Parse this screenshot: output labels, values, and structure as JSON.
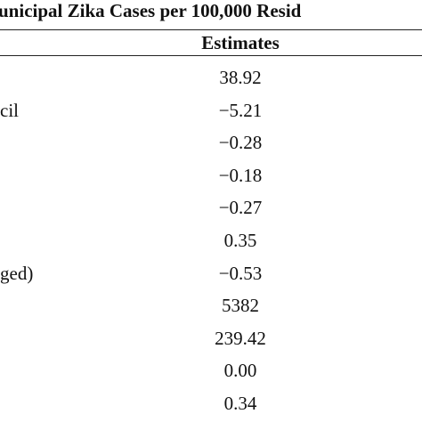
{
  "table": {
    "title": "unicipal Zika Cases per 100,000 Resid",
    "column_header": "Estimates",
    "rows": [
      {
        "value": "38.92"
      },
      {
        "label": "cil",
        "value": "−5.21"
      },
      {
        "value": "−0.28"
      },
      {
        "value": "−0.18"
      },
      {
        "value": "−0.27"
      },
      {
        "value": "0.35"
      },
      {
        "label": "ged)",
        "value": "−0.53"
      },
      {
        "value": "5382"
      },
      {
        "value": "239.42"
      },
      {
        "value": "0.00"
      },
      {
        "value": "0.34"
      }
    ]
  }
}
